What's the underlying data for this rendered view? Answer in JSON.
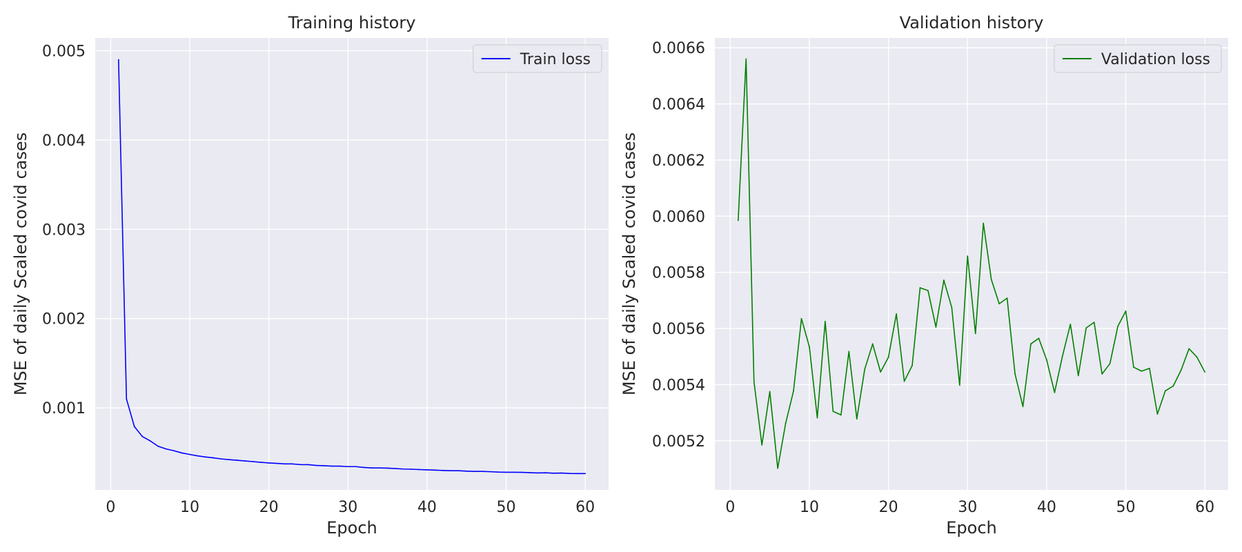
{
  "chart_data": [
    {
      "type": "line",
      "title": "Training history",
      "xlabel": "Epoch",
      "ylabel": "MSE of daily Scaled covid cases",
      "xlim": [
        -1.95,
        62.95
      ],
      "ylim": [
        8.11e-05,
        0.0051437
      ],
      "xticks": [
        0,
        10,
        20,
        30,
        40,
        50,
        60
      ],
      "yticks": [
        0.001,
        0.002,
        0.003,
        0.004,
        0.005
      ],
      "ytick_labels": [
        "0.001",
        "0.002",
        "0.003",
        "0.004",
        "0.005"
      ],
      "grid": true,
      "legend": "top-right",
      "series": [
        {
          "name": "Train loss",
          "color": "#0000ff",
          "x": [
            1,
            2,
            3,
            4,
            5,
            6,
            7,
            8,
            9,
            10,
            11,
            12,
            13,
            14,
            15,
            16,
            17,
            18,
            19,
            20,
            21,
            22,
            23,
            24,
            25,
            26,
            27,
            28,
            29,
            30,
            31,
            32,
            33,
            34,
            35,
            36,
            37,
            38,
            39,
            40,
            41,
            42,
            43,
            44,
            45,
            46,
            47,
            48,
            49,
            50,
            51,
            52,
            53,
            54,
            55,
            56,
            57,
            58,
            59,
            60
          ],
          "y": [
            0.0049,
            0.0011,
            0.00079,
            0.00068,
            0.00063,
            0.00057,
            0.00054,
            0.00052,
            0.000495,
            0.000478,
            0.000462,
            0.00045,
            0.00044,
            0.000428,
            0.00042,
            0.000413,
            0.000405,
            0.000398,
            0.00039,
            0.000383,
            0.000378,
            0.000372,
            0.000372,
            0.000365,
            0.000364,
            0.000355,
            0.000352,
            0.000347,
            0.000347,
            0.000342,
            0.000342,
            0.000333,
            0.000327,
            0.000327,
            0.000325,
            0.00032,
            0.000315,
            0.000313,
            0.000309,
            0.000306,
            0.000303,
            0.000299,
            0.000296,
            0.000296,
            0.000291,
            0.000288,
            0.000288,
            0.000285,
            0.000281,
            0.000279,
            0.000279,
            0.000278,
            0.000274,
            0.000271,
            0.000273,
            0.000268,
            0.00027,
            0.000265,
            0.000264,
            0.000264
          ]
        }
      ]
    },
    {
      "type": "line",
      "title": "Validation history",
      "xlabel": "Epoch",
      "ylabel": "MSE of daily Scaled covid cases",
      "xlim": [
        -1.95,
        62.95
      ],
      "ylim": [
        0.005025,
        0.006635
      ],
      "xticks": [
        0,
        10,
        20,
        30,
        40,
        50,
        60
      ],
      "yticks": [
        0.0052,
        0.0054,
        0.0056,
        0.0058,
        0.006,
        0.0062,
        0.0064,
        0.0066
      ],
      "ytick_labels": [
        "0.0052",
        "0.0054",
        "0.0056",
        "0.0058",
        "0.0060",
        "0.0062",
        "0.0064",
        "0.0066"
      ],
      "grid": true,
      "legend": "top-right",
      "series": [
        {
          "name": "Validation loss",
          "color": "#008000",
          "x": [
            1,
            2,
            3,
            4,
            5,
            6,
            7,
            8,
            9,
            10,
            11,
            12,
            13,
            14,
            15,
            16,
            17,
            18,
            19,
            20,
            21,
            22,
            23,
            24,
            25,
            26,
            27,
            28,
            29,
            30,
            31,
            32,
            33,
            34,
            35,
            36,
            37,
            38,
            39,
            40,
            41,
            42,
            43,
            44,
            45,
            46,
            47,
            48,
            49,
            50,
            51,
            52,
            53,
            54,
            55,
            56,
            57,
            58,
            59,
            60
          ],
          "y": [
            0.005985,
            0.00656,
            0.00541,
            0.005185,
            0.005375,
            0.005102,
            0.005262,
            0.005378,
            0.005635,
            0.005535,
            0.005282,
            0.005625,
            0.005305,
            0.005292,
            0.005518,
            0.005278,
            0.005455,
            0.005545,
            0.005445,
            0.005498,
            0.005652,
            0.005412,
            0.005468,
            0.005745,
            0.005735,
            0.005605,
            0.005772,
            0.005675,
            0.005398,
            0.005858,
            0.005582,
            0.005975,
            0.005775,
            0.005688,
            0.005708,
            0.005438,
            0.005322,
            0.005545,
            0.005565,
            0.005488,
            0.005372,
            0.005502,
            0.005615,
            0.005432,
            0.005602,
            0.005622,
            0.005438,
            0.005475,
            0.005608,
            0.005662,
            0.005462,
            0.005448,
            0.005458,
            0.005295,
            0.005378,
            0.005395,
            0.005452,
            0.005528,
            0.005498,
            0.005445
          ]
        }
      ]
    }
  ]
}
